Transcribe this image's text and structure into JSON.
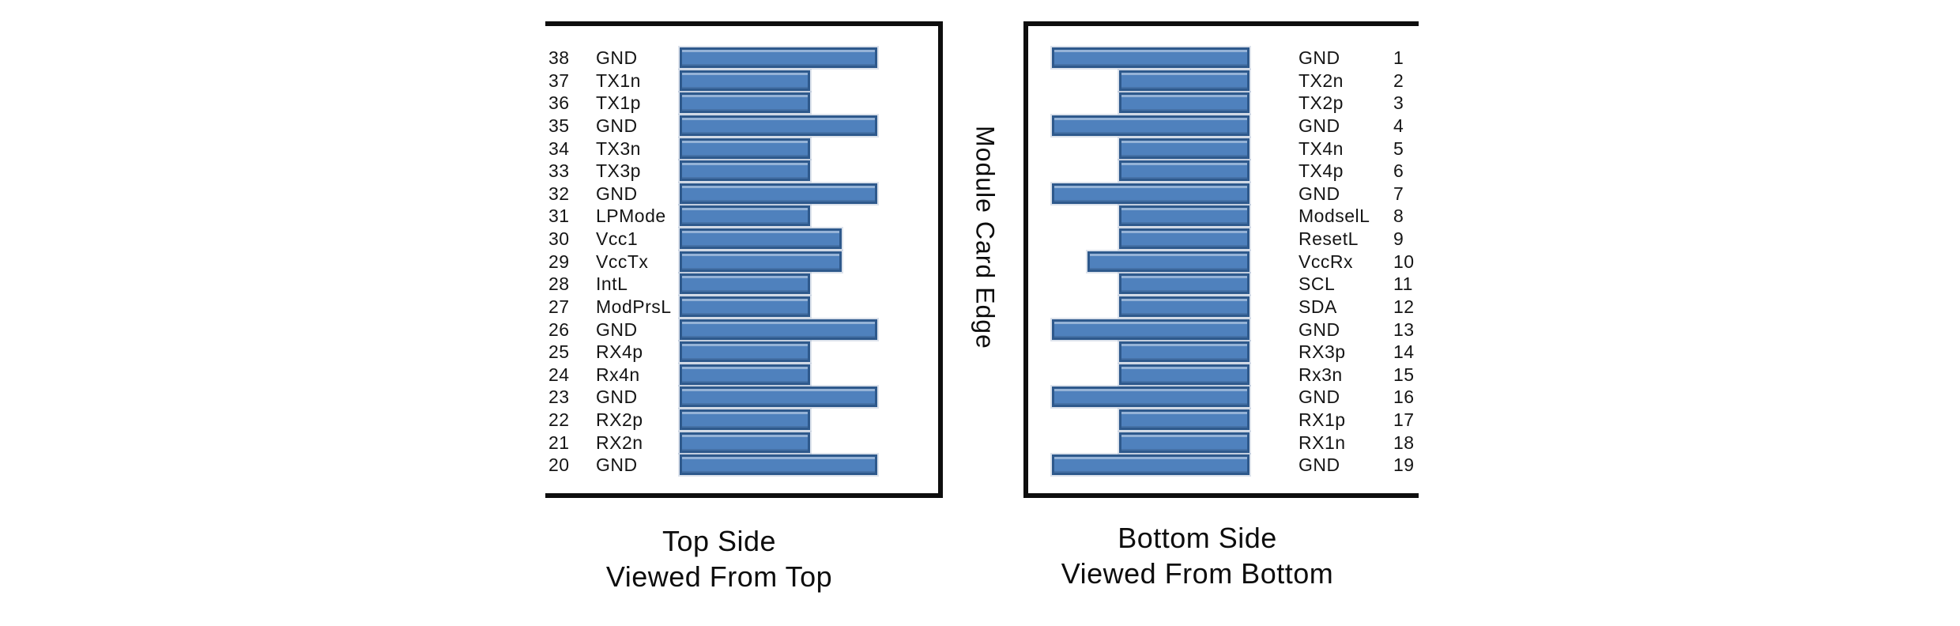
{
  "diagram": {
    "center_label": "Module Card Edge",
    "bar_fill_color": "#4f81bd",
    "bar_border_color": "#2e598c",
    "top_panel": {
      "caption_line1": "Top Side",
      "caption_line2": "Viewed From Top",
      "pins": [
        {
          "number": "38",
          "name": "GND",
          "type": "gnd"
        },
        {
          "number": "37",
          "name": "TX1n",
          "type": "signal"
        },
        {
          "number": "36",
          "name": "TX1p",
          "type": "signal"
        },
        {
          "number": "35",
          "name": "GND",
          "type": "gnd"
        },
        {
          "number": "34",
          "name": "TX3n",
          "type": "signal"
        },
        {
          "number": "33",
          "name": "TX3p",
          "type": "signal"
        },
        {
          "number": "32",
          "name": "GND",
          "type": "gnd"
        },
        {
          "number": "31",
          "name": "LPMode",
          "type": "signal"
        },
        {
          "number": "30",
          "name": "Vcc1",
          "type": "power"
        },
        {
          "number": "29",
          "name": "VccTx",
          "type": "power"
        },
        {
          "number": "28",
          "name": "IntL",
          "type": "signal"
        },
        {
          "number": "27",
          "name": "ModPrsL",
          "type": "signal"
        },
        {
          "number": "26",
          "name": "GND",
          "type": "gnd"
        },
        {
          "number": "25",
          "name": "RX4p",
          "type": "signal"
        },
        {
          "number": "24",
          "name": "Rx4n",
          "type": "signal"
        },
        {
          "number": "23",
          "name": "GND",
          "type": "gnd"
        },
        {
          "number": "22",
          "name": "RX2p",
          "type": "signal"
        },
        {
          "number": "21",
          "name": "RX2n",
          "type": "signal"
        },
        {
          "number": "20",
          "name": "GND",
          "type": "gnd"
        }
      ]
    },
    "bottom_panel": {
      "caption_line1": "Bottom Side",
      "caption_line2": "Viewed From Bottom",
      "pins": [
        {
          "number": "1",
          "name": "GND",
          "type": "gnd"
        },
        {
          "number": "2",
          "name": "TX2n",
          "type": "signal"
        },
        {
          "number": "3",
          "name": "TX2p",
          "type": "signal"
        },
        {
          "number": "4",
          "name": "GND",
          "type": "gnd"
        },
        {
          "number": "5",
          "name": "TX4n",
          "type": "signal"
        },
        {
          "number": "6",
          "name": "TX4p",
          "type": "signal"
        },
        {
          "number": "7",
          "name": "GND",
          "type": "gnd"
        },
        {
          "number": "8",
          "name": "ModselL",
          "type": "signal"
        },
        {
          "number": "9",
          "name": "ResetL",
          "type": "signal"
        },
        {
          "number": "10",
          "name": "VccRx",
          "type": "power"
        },
        {
          "number": "11",
          "name": "SCL",
          "type": "signal"
        },
        {
          "number": "12",
          "name": "SDA",
          "type": "signal"
        },
        {
          "number": "13",
          "name": "GND",
          "type": "gnd"
        },
        {
          "number": "14",
          "name": "RX3p",
          "type": "signal"
        },
        {
          "number": "15",
          "name": "Rx3n",
          "type": "signal"
        },
        {
          "number": "16",
          "name": "GND",
          "type": "gnd"
        },
        {
          "number": "17",
          "name": "RX1p",
          "type": "signal"
        },
        {
          "number": "18",
          "name": "RX1n",
          "type": "signal"
        },
        {
          "number": "19",
          "name": "GND",
          "type": "gnd"
        }
      ]
    }
  }
}
